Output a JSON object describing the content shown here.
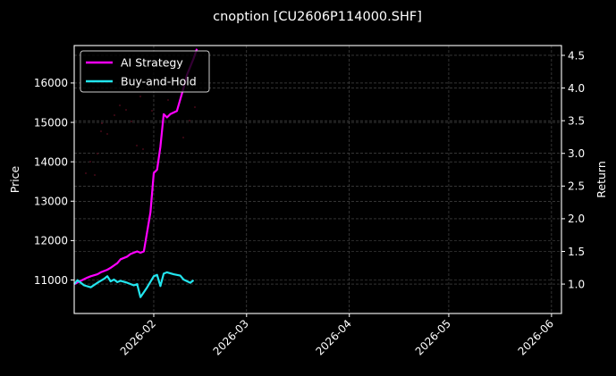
{
  "chart_data": {
    "type": "line",
    "title": "cnoption [CU2606P114000.SHF]",
    "xlabel": "",
    "ylabel": "Price",
    "ylabel_right": "Return",
    "x_ticks": [
      "2026-02",
      "2026-03",
      "2026-04",
      "2026-05",
      "2026-06"
    ],
    "y_ticks_left": [
      11000,
      12000,
      13000,
      14000,
      15000,
      16000
    ],
    "y_ticks_right": [
      "1.0",
      "1.5",
      "2.0",
      "2.5",
      "3.0",
      "3.5",
      "4.0",
      "4.5"
    ],
    "ylim_left": [
      10150,
      16950
    ],
    "ylim_right": [
      0.55,
      4.65
    ],
    "xlim": [
      "2026-01-08",
      "2026-06-04"
    ],
    "grid": true,
    "legend_position": "upper left",
    "background": "#000000",
    "series": [
      {
        "name": "AI Strategy",
        "axis": "right",
        "color": "#ff00ff",
        "x": [
          "2026-01-08",
          "2026-01-10",
          "2026-01-12",
          "2026-01-13",
          "2026-01-15",
          "2026-01-16",
          "2026-01-18",
          "2026-01-19",
          "2026-01-21",
          "2026-01-22",
          "2026-01-24",
          "2026-01-25",
          "2026-01-27",
          "2026-01-28",
          "2026-01-29",
          "2026-01-31",
          "2026-02-01",
          "2026-02-02",
          "2026-02-03",
          "2026-02-04",
          "2026-02-05",
          "2026-02-06",
          "2026-02-08",
          "2026-02-10",
          "2026-02-11",
          "2026-02-13",
          "2026-02-14"
        ],
        "values": [
          1.0,
          1.05,
          1.1,
          1.12,
          1.15,
          1.18,
          1.22,
          1.25,
          1.32,
          1.38,
          1.42,
          1.46,
          1.5,
          1.48,
          1.5,
          2.1,
          2.7,
          2.75,
          3.1,
          3.6,
          3.55,
          3.6,
          3.65,
          4.0,
          4.2,
          4.45,
          4.6
        ]
      },
      {
        "name": "Buy-and-Hold",
        "axis": "right",
        "color": "#22e5ee",
        "x": [
          "2026-01-08",
          "2026-01-09",
          "2026-01-11",
          "2026-01-13",
          "2026-01-15",
          "2026-01-17",
          "2026-01-18",
          "2026-01-19",
          "2026-01-20",
          "2026-01-21",
          "2026-01-22",
          "2026-01-24",
          "2026-01-26",
          "2026-01-27",
          "2026-01-28",
          "2026-01-30",
          "2026-02-01",
          "2026-02-02",
          "2026-02-03",
          "2026-02-04",
          "2026-02-05",
          "2026-02-07",
          "2026-02-09",
          "2026-02-10",
          "2026-02-12",
          "2026-02-13"
        ],
        "values": [
          1.0,
          1.06,
          0.98,
          0.95,
          1.02,
          1.08,
          1.12,
          1.04,
          1.07,
          1.03,
          1.05,
          1.02,
          0.98,
          1.0,
          0.8,
          0.95,
          1.12,
          1.14,
          0.97,
          1.16,
          1.18,
          1.15,
          1.13,
          1.07,
          1.02,
          1.06
        ]
      }
    ],
    "scatter_noise": {
      "color": "#5a0a1e",
      "description": "faint dark-red dots scattered in upper-left region"
    }
  }
}
